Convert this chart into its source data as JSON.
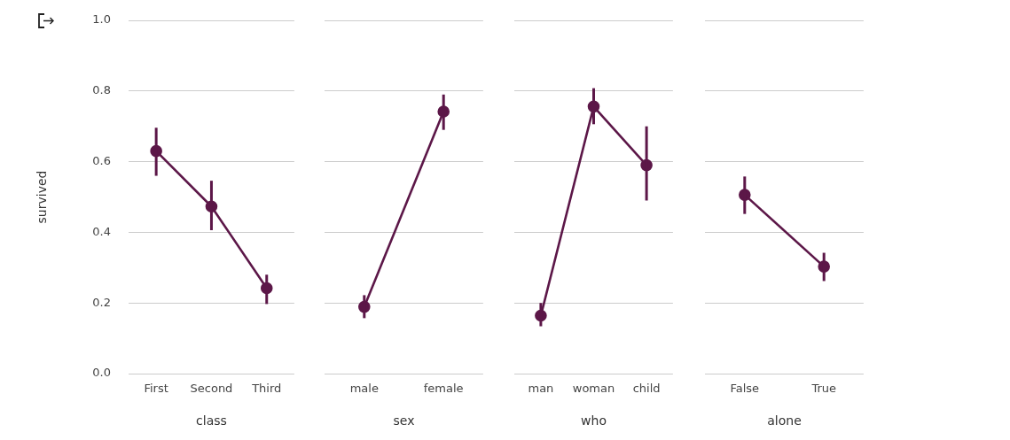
{
  "chart_data": [
    {
      "type": "line",
      "categories": [
        "First",
        "Second",
        "Third"
      ],
      "xlabel": "class",
      "ylabel": "survived",
      "ylim": [
        0,
        1
      ],
      "yticks": [
        {
          "value": 0,
          "label": "0.0"
        },
        {
          "value": 0.2,
          "label": "0.2"
        },
        {
          "value": 0.4,
          "label": "0.4"
        },
        {
          "value": 0.6,
          "label": "0.6"
        },
        {
          "value": 0.8,
          "label": "0.8"
        },
        {
          "value": 1,
          "label": "1.0"
        }
      ],
      "grid": "y",
      "marker": "circle",
      "series": [
        {
          "color": "#5c1748",
          "values": [
            0.63,
            0.473,
            0.242
          ],
          "errors": [
            [
              0.56,
              0.696
            ],
            [
              0.406,
              0.546
            ],
            [
              0.197,
              0.28
            ]
          ]
        }
      ]
    },
    {
      "type": "line",
      "categories": [
        "male",
        "female"
      ],
      "xlabel": "sex",
      "ylim": [
        0,
        1
      ],
      "yticks": [
        0,
        0.2,
        0.4,
        0.6,
        0.8,
        1
      ],
      "grid": "y",
      "marker": "circle",
      "tick_labels": "x",
      "series": [
        {
          "color": "#5c1748",
          "values": [
            0.189,
            0.742
          ],
          "errors": [
            [
              0.157,
              0.222
            ],
            [
              0.69,
              0.79
            ]
          ]
        }
      ]
    },
    {
      "type": "line",
      "categories": [
        "man",
        "woman",
        "child"
      ],
      "xlabel": "who",
      "ylim": [
        0,
        1
      ],
      "yticks": [
        0,
        0.2,
        0.4,
        0.6,
        0.8,
        1
      ],
      "grid": "y",
      "marker": "circle",
      "tick_labels": "x",
      "series": [
        {
          "color": "#5c1748",
          "values": [
            0.164,
            0.756,
            0.59
          ],
          "errors": [
            [
              0.134,
              0.2
            ],
            [
              0.706,
              0.808
            ],
            [
              0.49,
              0.7
            ]
          ]
        }
      ]
    },
    {
      "type": "line",
      "categories": [
        "False",
        "True"
      ],
      "xlabel": "alone",
      "ylim": [
        0,
        1
      ],
      "yticks": [
        0,
        0.2,
        0.4,
        0.6,
        0.8,
        1
      ],
      "grid": "y",
      "marker": "circle",
      "tick_labels": "x",
      "series": [
        {
          "color": "#5c1748",
          "values": [
            0.506,
            0.303
          ],
          "errors": [
            [
              0.452,
              0.558
            ],
            [
              0.262,
              0.342
            ]
          ]
        }
      ]
    }
  ]
}
